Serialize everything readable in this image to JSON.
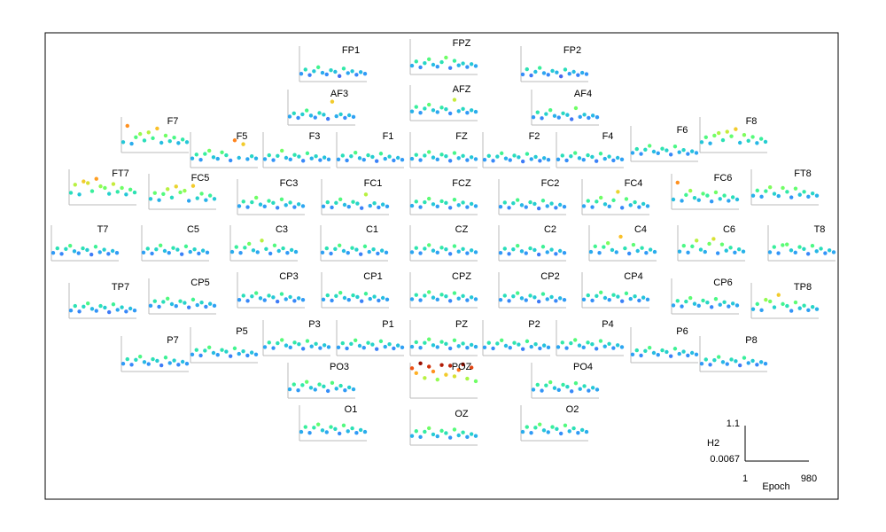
{
  "chart_data": {
    "type": "scatter",
    "x_label": "Epoch",
    "y_label": "H2",
    "xlim": [
      1,
      980
    ],
    "ylim": [
      0.0067,
      1.1
    ],
    "xticks": [
      1,
      980
    ],
    "yticks": [
      0.0067,
      1.1
    ],
    "colormap": "turbo",
    "x": [
      1,
      66,
      131,
      196,
      262,
      327,
      392,
      457,
      523,
      588,
      653,
      718,
      784,
      849,
      914,
      980
    ],
    "series": [
      {
        "name": "FP1",
        "values": [
          0.22,
          0.35,
          0.18,
          0.3,
          0.42,
          0.25,
          0.2,
          0.33,
          0.28,
          0.15,
          0.38,
          0.24,
          0.3,
          0.19,
          0.27,
          0.22
        ]
      },
      {
        "name": "FPZ",
        "values": [
          0.25,
          0.38,
          0.2,
          0.33,
          0.45,
          0.28,
          0.22,
          0.36,
          0.5,
          0.18,
          0.4,
          0.26,
          0.32,
          0.21,
          0.3,
          0.24
        ]
      },
      {
        "name": "FP2",
        "values": [
          0.2,
          0.36,
          0.17,
          0.28,
          0.4,
          0.24,
          0.19,
          0.31,
          0.26,
          0.14,
          0.35,
          0.22,
          0.28,
          0.18,
          0.25,
          0.21
        ]
      },
      {
        "name": "AF3",
        "values": [
          0.24,
          0.34,
          0.2,
          0.31,
          0.43,
          0.27,
          0.21,
          0.35,
          0.3,
          0.17,
          0.7,
          0.25,
          0.31,
          0.2,
          0.28,
          0.23
        ]
      },
      {
        "name": "AFZ",
        "values": [
          0.26,
          0.4,
          0.22,
          0.35,
          0.47,
          0.3,
          0.24,
          0.38,
          0.33,
          0.2,
          0.62,
          0.27,
          0.34,
          0.22,
          0.3,
          0.25
        ]
      },
      {
        "name": "AF4",
        "values": [
          0.22,
          0.37,
          0.19,
          0.32,
          0.44,
          0.26,
          0.21,
          0.34,
          0.29,
          0.16,
          0.5,
          0.23,
          0.3,
          0.2,
          0.27,
          0.22
        ]
      },
      {
        "name": "F7",
        "values": [
          0.3,
          0.8,
          0.25,
          0.45,
          0.55,
          0.35,
          0.6,
          0.42,
          0.72,
          0.28,
          0.5,
          0.33,
          0.44,
          0.27,
          0.38,
          0.3
        ]
      },
      {
        "name": "F5",
        "values": [
          0.26,
          0.38,
          0.22,
          0.4,
          0.5,
          0.3,
          0.25,
          0.45,
          0.36,
          0.2,
          0.82,
          0.28,
          0.7,
          0.24,
          0.33,
          0.26
        ]
      },
      {
        "name": "F3",
        "values": [
          0.24,
          0.36,
          0.21,
          0.34,
          0.5,
          0.28,
          0.23,
          0.37,
          0.32,
          0.19,
          0.42,
          0.26,
          0.33,
          0.21,
          0.29,
          0.23
        ]
      },
      {
        "name": "F1",
        "values": [
          0.23,
          0.35,
          0.2,
          0.33,
          0.44,
          0.27,
          0.22,
          0.36,
          0.31,
          0.18,
          0.41,
          0.25,
          0.32,
          0.2,
          0.28,
          0.22
        ]
      },
      {
        "name": "FZ",
        "values": [
          0.25,
          0.37,
          0.21,
          0.35,
          0.46,
          0.29,
          0.23,
          0.38,
          0.33,
          0.19,
          0.43,
          0.27,
          0.34,
          0.21,
          0.3,
          0.24
        ]
      },
      {
        "name": "F2",
        "values": [
          0.22,
          0.34,
          0.19,
          0.32,
          0.42,
          0.26,
          0.21,
          0.35,
          0.3,
          0.17,
          0.4,
          0.24,
          0.31,
          0.19,
          0.27,
          0.22
        ]
      },
      {
        "name": "F4",
        "values": [
          0.23,
          0.35,
          0.2,
          0.33,
          0.43,
          0.27,
          0.22,
          0.36,
          0.31,
          0.18,
          0.41,
          0.25,
          0.32,
          0.2,
          0.28,
          0.23
        ]
      },
      {
        "name": "F6",
        "values": [
          0.24,
          0.36,
          0.21,
          0.34,
          0.46,
          0.28,
          0.23,
          0.37,
          0.32,
          0.19,
          0.44,
          0.26,
          0.33,
          0.21,
          0.29,
          0.24
        ]
      },
      {
        "name": "F8",
        "values": [
          0.3,
          0.45,
          0.26,
          0.5,
          0.58,
          0.36,
          0.62,
          0.48,
          0.7,
          0.28,
          0.52,
          0.34,
          0.46,
          0.27,
          0.4,
          0.31
        ]
      },
      {
        "name": "FT7",
        "values": [
          0.35,
          0.6,
          0.3,
          0.7,
          0.65,
          0.4,
          0.78,
          0.55,
          0.5,
          0.32,
          0.62,
          0.38,
          0.5,
          0.3,
          0.45,
          0.36
        ]
      },
      {
        "name": "FC5",
        "values": [
          0.3,
          0.48,
          0.26,
          0.45,
          0.6,
          0.34,
          0.68,
          0.5,
          0.55,
          0.24,
          0.7,
          0.32,
          0.46,
          0.26,
          0.4,
          0.3
        ]
      },
      {
        "name": "FC3",
        "values": [
          0.24,
          0.38,
          0.21,
          0.36,
          0.5,
          0.29,
          0.23,
          0.4,
          0.34,
          0.19,
          0.45,
          0.27,
          0.35,
          0.21,
          0.3,
          0.24
        ]
      },
      {
        "name": "FC1",
        "values": [
          0.23,
          0.36,
          0.2,
          0.34,
          0.45,
          0.28,
          0.22,
          0.37,
          0.32,
          0.18,
          0.6,
          0.25,
          0.33,
          0.2,
          0.29,
          0.23
        ]
      },
      {
        "name": "FCZ",
        "values": [
          0.25,
          0.38,
          0.21,
          0.36,
          0.47,
          0.3,
          0.23,
          0.39,
          0.34,
          0.19,
          0.44,
          0.27,
          0.35,
          0.21,
          0.31,
          0.24
        ]
      },
      {
        "name": "FC2",
        "values": [
          0.22,
          0.35,
          0.19,
          0.33,
          0.43,
          0.27,
          0.21,
          0.36,
          0.31,
          0.17,
          0.41,
          0.24,
          0.32,
          0.19,
          0.28,
          0.22
        ]
      },
      {
        "name": "FC4",
        "values": [
          0.24,
          0.4,
          0.21,
          0.38,
          0.5,
          0.3,
          0.23,
          0.42,
          0.68,
          0.19,
          0.46,
          0.27,
          0.36,
          0.21,
          0.31,
          0.24
        ]
      },
      {
        "name": "FC6",
        "values": [
          0.28,
          0.8,
          0.24,
          0.42,
          0.55,
          0.33,
          0.26,
          0.46,
          0.4,
          0.22,
          0.5,
          0.3,
          0.4,
          0.24,
          0.35,
          0.28
        ]
      },
      {
        "name": "FT8",
        "values": [
          0.26,
          0.42,
          0.23,
          0.4,
          0.52,
          0.32,
          0.25,
          0.5,
          0.38,
          0.21,
          0.48,
          0.29,
          0.38,
          0.23,
          0.33,
          0.26
        ]
      },
      {
        "name": "T7",
        "values": [
          0.22,
          0.36,
          0.19,
          0.34,
          0.44,
          0.27,
          0.21,
          0.36,
          0.31,
          0.17,
          0.41,
          0.24,
          0.32,
          0.19,
          0.28,
          0.22
        ]
      },
      {
        "name": "C5",
        "values": [
          0.23,
          0.35,
          0.2,
          0.33,
          0.45,
          0.28,
          0.22,
          0.37,
          0.32,
          0.18,
          0.42,
          0.25,
          0.33,
          0.2,
          0.29,
          0.23
        ]
      },
      {
        "name": "C3",
        "values": [
          0.25,
          0.4,
          0.22,
          0.38,
          0.5,
          0.3,
          0.24,
          0.6,
          0.34,
          0.2,
          0.45,
          0.28,
          0.36,
          0.22,
          0.31,
          0.25
        ]
      },
      {
        "name": "C1",
        "values": [
          0.23,
          0.36,
          0.2,
          0.34,
          0.45,
          0.28,
          0.22,
          0.37,
          0.32,
          0.18,
          0.42,
          0.25,
          0.33,
          0.2,
          0.29,
          0.23
        ]
      },
      {
        "name": "CZ",
        "values": [
          0.24,
          0.37,
          0.21,
          0.35,
          0.46,
          0.29,
          0.23,
          0.38,
          0.33,
          0.19,
          0.43,
          0.26,
          0.34,
          0.21,
          0.3,
          0.24
        ]
      },
      {
        "name": "C2",
        "values": [
          0.22,
          0.35,
          0.19,
          0.33,
          0.44,
          0.27,
          0.21,
          0.36,
          0.31,
          0.17,
          0.41,
          0.24,
          0.32,
          0.19,
          0.28,
          0.22
        ]
      },
      {
        "name": "C4",
        "values": [
          0.25,
          0.42,
          0.22,
          0.4,
          0.52,
          0.31,
          0.24,
          0.72,
          0.36,
          0.2,
          0.47,
          0.28,
          0.37,
          0.22,
          0.32,
          0.25
        ]
      },
      {
        "name": "C6",
        "values": [
          0.26,
          0.44,
          0.23,
          0.42,
          0.6,
          0.32,
          0.25,
          0.5,
          0.65,
          0.21,
          0.48,
          0.29,
          0.38,
          0.23,
          0.33,
          0.26
        ]
      },
      {
        "name": "T8",
        "values": [
          0.24,
          0.4,
          0.21,
          0.46,
          0.48,
          0.3,
          0.23,
          0.4,
          0.34,
          0.19,
          0.44,
          0.27,
          0.35,
          0.21,
          0.3,
          0.24
        ]
      },
      {
        "name": "TP7",
        "values": [
          0.22,
          0.36,
          0.19,
          0.34,
          0.44,
          0.27,
          0.21,
          0.36,
          0.31,
          0.17,
          0.41,
          0.24,
          0.32,
          0.19,
          0.28,
          0.22
        ]
      },
      {
        "name": "CP5",
        "values": [
          0.23,
          0.37,
          0.2,
          0.35,
          0.45,
          0.28,
          0.22,
          0.37,
          0.32,
          0.18,
          0.42,
          0.25,
          0.33,
          0.2,
          0.29,
          0.23
        ]
      },
      {
        "name": "CP3",
        "values": [
          0.22,
          0.35,
          0.19,
          0.33,
          0.43,
          0.27,
          0.21,
          0.35,
          0.3,
          0.17,
          0.4,
          0.24,
          0.31,
          0.19,
          0.27,
          0.22
        ]
      },
      {
        "name": "CP1",
        "values": [
          0.23,
          0.36,
          0.2,
          0.34,
          0.44,
          0.28,
          0.22,
          0.36,
          0.31,
          0.18,
          0.41,
          0.25,
          0.32,
          0.2,
          0.28,
          0.23
        ]
      },
      {
        "name": "CPZ",
        "values": [
          0.24,
          0.37,
          0.21,
          0.35,
          0.46,
          0.29,
          0.23,
          0.38,
          0.33,
          0.19,
          0.43,
          0.26,
          0.34,
          0.21,
          0.3,
          0.24
        ]
      },
      {
        "name": "CP2",
        "values": [
          0.22,
          0.35,
          0.19,
          0.33,
          0.43,
          0.27,
          0.21,
          0.35,
          0.3,
          0.17,
          0.4,
          0.24,
          0.31,
          0.19,
          0.27,
          0.22
        ]
      },
      {
        "name": "CP4",
        "values": [
          0.23,
          0.36,
          0.2,
          0.34,
          0.45,
          0.28,
          0.22,
          0.37,
          0.32,
          0.18,
          0.42,
          0.25,
          0.33,
          0.2,
          0.29,
          0.23
        ]
      },
      {
        "name": "CP6",
        "values": [
          0.24,
          0.38,
          0.21,
          0.36,
          0.47,
          0.29,
          0.23,
          0.39,
          0.33,
          0.19,
          0.44,
          0.26,
          0.34,
          0.21,
          0.3,
          0.24
        ]
      },
      {
        "name": "TP8",
        "values": [
          0.26,
          0.42,
          0.23,
          0.55,
          0.5,
          0.32,
          0.7,
          0.42,
          0.36,
          0.21,
          0.47,
          0.29,
          0.37,
          0.23,
          0.33,
          0.26
        ]
      },
      {
        "name": "P7",
        "values": [
          0.22,
          0.36,
          0.19,
          0.34,
          0.44,
          0.27,
          0.21,
          0.36,
          0.31,
          0.17,
          0.41,
          0.24,
          0.32,
          0.19,
          0.28,
          0.22
        ]
      },
      {
        "name": "P5",
        "values": [
          0.23,
          0.37,
          0.2,
          0.35,
          0.45,
          0.28,
          0.22,
          0.37,
          0.32,
          0.18,
          0.42,
          0.25,
          0.33,
          0.2,
          0.29,
          0.23
        ]
      },
      {
        "name": "P3",
        "values": [
          0.24,
          0.38,
          0.21,
          0.36,
          0.46,
          0.29,
          0.23,
          0.38,
          0.33,
          0.19,
          0.43,
          0.26,
          0.34,
          0.21,
          0.3,
          0.24
        ]
      },
      {
        "name": "P1",
        "values": [
          0.23,
          0.36,
          0.2,
          0.34,
          0.45,
          0.28,
          0.22,
          0.37,
          0.32,
          0.18,
          0.42,
          0.25,
          0.33,
          0.2,
          0.29,
          0.23
        ]
      },
      {
        "name": "PZ",
        "values": [
          0.25,
          0.39,
          0.22,
          0.37,
          0.48,
          0.3,
          0.24,
          0.4,
          0.34,
          0.2,
          0.45,
          0.27,
          0.35,
          0.22,
          0.31,
          0.25
        ]
      },
      {
        "name": "P2",
        "values": [
          0.23,
          0.37,
          0.2,
          0.35,
          0.45,
          0.28,
          0.22,
          0.37,
          0.32,
          0.18,
          0.42,
          0.25,
          0.33,
          0.2,
          0.29,
          0.23
        ]
      },
      {
        "name": "P4",
        "values": [
          0.24,
          0.38,
          0.21,
          0.36,
          0.46,
          0.29,
          0.23,
          0.38,
          0.33,
          0.19,
          0.43,
          0.26,
          0.34,
          0.21,
          0.3,
          0.24
        ]
      },
      {
        "name": "P6",
        "values": [
          0.23,
          0.36,
          0.2,
          0.34,
          0.44,
          0.28,
          0.22,
          0.36,
          0.31,
          0.18,
          0.41,
          0.25,
          0.32,
          0.2,
          0.28,
          0.23
        ]
      },
      {
        "name": "P8",
        "values": [
          0.22,
          0.35,
          0.19,
          0.33,
          0.43,
          0.27,
          0.21,
          0.35,
          0.3,
          0.17,
          0.4,
          0.24,
          0.31,
          0.19,
          0.27,
          0.22
        ]
      },
      {
        "name": "PO3",
        "values": [
          0.25,
          0.4,
          0.22,
          0.38,
          0.48,
          0.3,
          0.24,
          0.4,
          0.34,
          0.2,
          0.45,
          0.27,
          0.36,
          0.22,
          0.31,
          0.25
        ]
      },
      {
        "name": "POZ",
        "values": [
          0.9,
          0.75,
          1.05,
          0.6,
          0.95,
          0.8,
          0.55,
          1.0,
          0.7,
          0.98,
          0.65,
          0.85,
          1.02,
          0.58,
          0.92,
          0.5
        ]
      },
      {
        "name": "PO4",
        "values": [
          0.24,
          0.39,
          0.21,
          0.37,
          0.47,
          0.29,
          0.23,
          0.39,
          0.33,
          0.19,
          0.44,
          0.26,
          0.35,
          0.21,
          0.3,
          0.24
        ]
      },
      {
        "name": "O1",
        "values": [
          0.25,
          0.4,
          0.22,
          0.38,
          0.48,
          0.3,
          0.24,
          0.4,
          0.34,
          0.2,
          0.45,
          0.27,
          0.36,
          0.22,
          0.31,
          0.25
        ]
      },
      {
        "name": "OZ",
        "values": [
          0.26,
          0.41,
          0.23,
          0.39,
          0.5,
          0.31,
          0.25,
          0.42,
          0.35,
          0.21,
          0.46,
          0.28,
          0.37,
          0.23,
          0.32,
          0.26
        ]
      },
      {
        "name": "O2",
        "values": [
          0.25,
          0.4,
          0.22,
          0.38,
          0.48,
          0.3,
          0.24,
          0.4,
          0.34,
          0.2,
          0.45,
          0.27,
          0.36,
          0.22,
          0.31,
          0.25
        ]
      }
    ]
  }
}
